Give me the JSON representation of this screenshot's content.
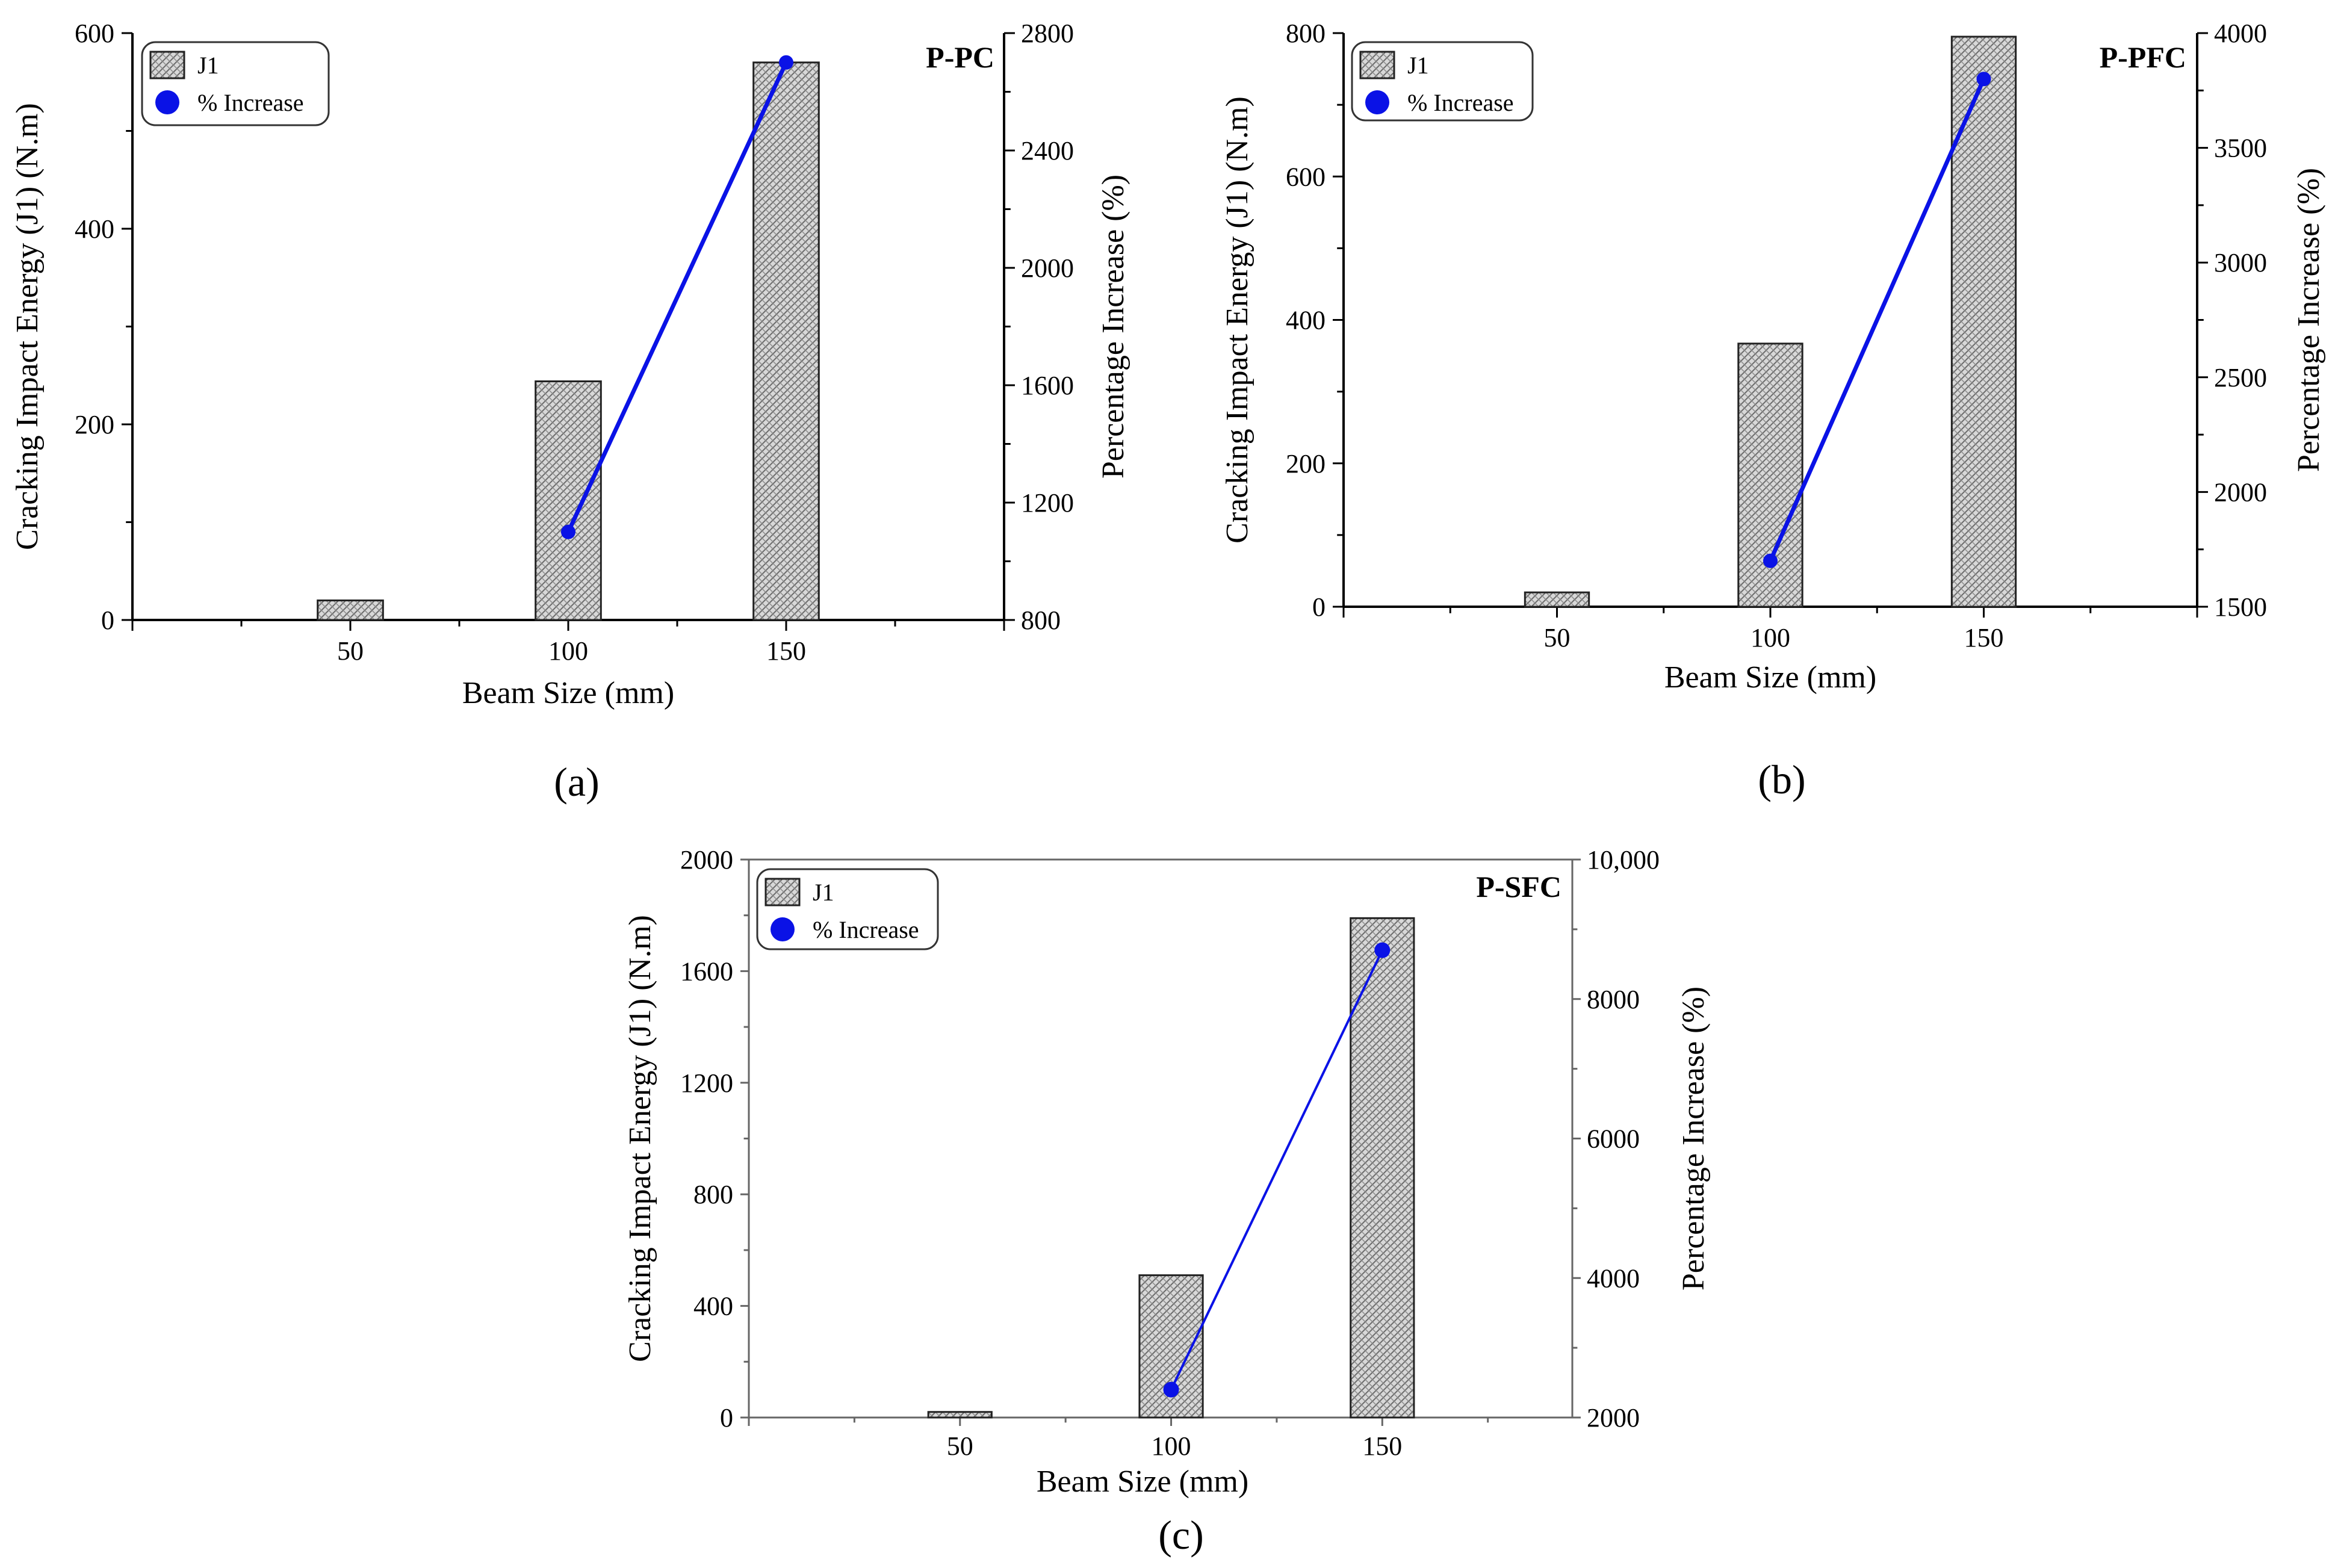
{
  "figure": {
    "captions": [
      "(a)",
      "(b)",
      "(c)"
    ]
  },
  "colors": {
    "bar_fill": "#cfcfcf",
    "bar_stroke": "#222222",
    "line": "#0a12e6",
    "marker": "#0a12e6",
    "axis": "#000000",
    "axis_c": "#666666"
  },
  "chart_data": [
    {
      "id": "a",
      "type": "bar",
      "panel_tag": "P-PC",
      "categories": [
        "50",
        "100",
        "150"
      ],
      "xlabel": "Beam Size (mm)",
      "ylabel": "Cracking Impact Energy (J1) (N.m)",
      "y2label": "Percentage Increase (%)",
      "ylim": [
        0,
        600
      ],
      "yticks": [
        "0",
        "200",
        "400",
        "600"
      ],
      "y2lim": [
        800,
        2800
      ],
      "y2ticks": [
        "800",
        "1200",
        "1600",
        "2000",
        "2400",
        "2800"
      ],
      "series": [
        {
          "name": "J1",
          "axis": "left",
          "kind": "bar",
          "values": [
            20,
            244,
            570
          ]
        },
        {
          "name": "% Increase",
          "axis": "right",
          "kind": "line",
          "values": [
            null,
            1100,
            2700
          ]
        }
      ],
      "legend": {
        "placement": "top-left",
        "labels": [
          "J1",
          "% Increase"
        ]
      }
    },
    {
      "id": "b",
      "type": "bar",
      "panel_tag": "P-PFC",
      "categories": [
        "50",
        "100",
        "150"
      ],
      "xlabel": "Beam Size (mm)",
      "ylabel": "Cracking Impact Energy (J1) (N.m)",
      "y2label": "Percentage Increase (%)",
      "ylim": [
        0,
        800
      ],
      "yticks": [
        "0",
        "200",
        "400",
        "600",
        "800"
      ],
      "y2lim": [
        1500,
        4000
      ],
      "y2ticks": [
        "1500",
        "2000",
        "2500",
        "3000",
        "3500",
        "4000"
      ],
      "series": [
        {
          "name": "J1",
          "axis": "left",
          "kind": "bar",
          "values": [
            20,
            367,
            795
          ]
        },
        {
          "name": "% Increase",
          "axis": "right",
          "kind": "line",
          "values": [
            null,
            1700,
            3800
          ]
        }
      ],
      "legend": {
        "placement": "top-left",
        "labels": [
          "J1",
          "% Increase"
        ]
      }
    },
    {
      "id": "c",
      "type": "bar",
      "panel_tag": "P-SFC",
      "categories": [
        "50",
        "100",
        "150"
      ],
      "xlabel": "Beam Size (mm)",
      "ylabel": "Cracking Impact Energy (J1) (N.m)",
      "y2label": "Percentage Increase (%)",
      "ylim": [
        0,
        2000
      ],
      "yticks": [
        "0",
        "400",
        "800",
        "1200",
        "1600",
        "2000"
      ],
      "y2lim": [
        2000,
        10000
      ],
      "y2ticks": [
        "2000",
        "4000",
        "6000",
        "8000",
        "10,000"
      ],
      "series": [
        {
          "name": "J1",
          "axis": "left",
          "kind": "bar",
          "values": [
            20,
            510,
            1790
          ]
        },
        {
          "name": "% Increase",
          "axis": "right",
          "kind": "line",
          "values": [
            null,
            2400,
            8700
          ]
        }
      ],
      "legend": {
        "placement": "top-left",
        "labels": [
          "J1",
          "% Increase"
        ]
      }
    }
  ]
}
